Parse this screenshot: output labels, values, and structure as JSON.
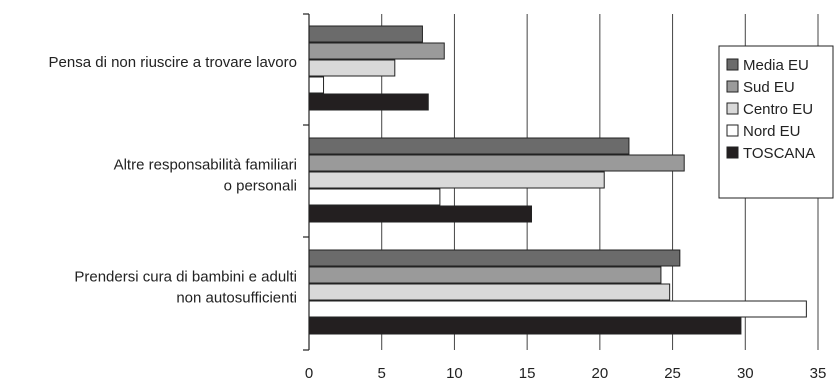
{
  "chart_data": {
    "type": "bar",
    "orientation": "horizontal",
    "categories": [
      [
        "Pensa di non riuscire a trovare lavoro"
      ],
      [
        "Altre responsabilità familiari",
        "o personali"
      ],
      [
        "Prendersi cura di bambini e adulti",
        "non autosufficienti"
      ]
    ],
    "series": [
      {
        "name": "Media EU",
        "color": "#6b6b6b",
        "values": [
          7.8,
          22.0,
          25.5
        ]
      },
      {
        "name": "Sud EU",
        "color": "#9a9a9a",
        "values": [
          9.3,
          25.8,
          24.2
        ]
      },
      {
        "name": "Centro EU",
        "color": "#d9d9d9",
        "values": [
          5.9,
          20.3,
          24.8
        ]
      },
      {
        "name": "Nord EU",
        "color": "#ffffff",
        "values": [
          1.0,
          9.0,
          34.2
        ]
      },
      {
        "name": "TOSCANA",
        "color": "#231f20",
        "values": [
          8.2,
          15.3,
          29.7
        ]
      }
    ],
    "xlim": [
      0,
      35
    ],
    "xticks": [
      0,
      5,
      10,
      15,
      20,
      25,
      30,
      35
    ],
    "grid": "vertical",
    "legend": "right",
    "title": "",
    "xlabel": "",
    "ylabel": ""
  }
}
